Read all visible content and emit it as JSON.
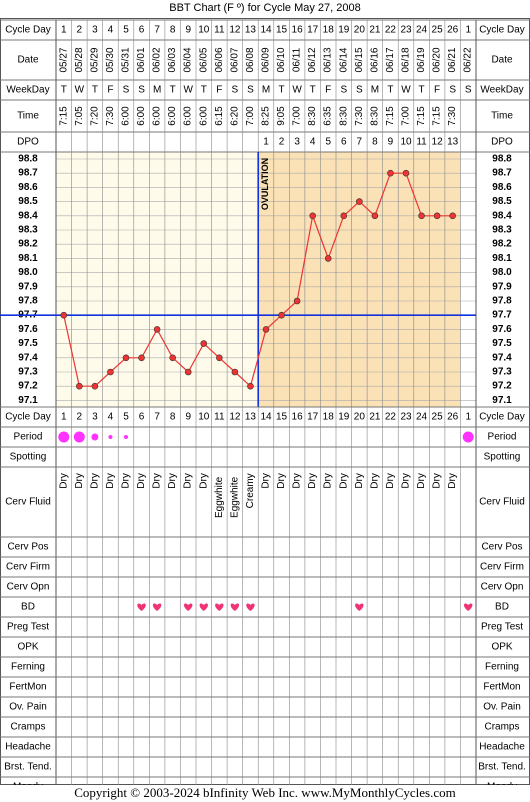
{
  "title": "BBT Chart (F º) for Cycle May 27, 2008",
  "copyright": "Copyright © 2003-2024 bInfinity Web Inc.    www.MyMonthlyCycles.com",
  "row_labels": {
    "cycle_day": "Cycle Day",
    "date": "Date",
    "weekday": "WeekDay",
    "time": "Time",
    "dpo": "DPO",
    "period": "Period",
    "spotting": "Spotting",
    "cerv_fluid": "Cerv Fluid",
    "cerv_pos": "Cerv Pos",
    "cerv_firm": "Cerv Firm",
    "cerv_opn": "Cerv Opn",
    "bd": "BD",
    "preg_test": "Preg Test",
    "opk": "OPK",
    "ferning": "Ferning",
    "fertmon": "FertMon",
    "ov_pain": "Ov. Pain",
    "cramps": "Cramps",
    "headache": "Headache",
    "brst_tend": "Brst. Tend.",
    "moody": "Moody"
  },
  "colors": {
    "pre_ovulation_fill": "#fffbea",
    "post_ovulation_fill": "#fae1b6",
    "temp_line": "#ee3333",
    "coverline": "#1133dd",
    "ovulation_line": "#1133dd",
    "period_dot": "#ff33ff",
    "bd_heart": "#ee3377",
    "grid": "#777777"
  },
  "chart_data": {
    "type": "line",
    "cycle_days": [
      "1",
      "2",
      "3",
      "4",
      "5",
      "6",
      "7",
      "8",
      "9",
      "10",
      "11",
      "12",
      "13",
      "14",
      "15",
      "16",
      "17",
      "18",
      "19",
      "20",
      "21",
      "22",
      "23",
      "24",
      "25",
      "26",
      "1"
    ],
    "dates": [
      "05/27",
      "05/28",
      "05/29",
      "05/30",
      "05/31",
      "06/01",
      "06/02",
      "06/03",
      "06/04",
      "06/05",
      "06/06",
      "06/07",
      "06/08",
      "06/09",
      "06/10",
      "06/11",
      "06/12",
      "06/13",
      "06/14",
      "06/15",
      "06/16",
      "06/17",
      "06/18",
      "06/19",
      "06/20",
      "06/21",
      "06/22"
    ],
    "weekdays": [
      "T",
      "W",
      "T",
      "F",
      "S",
      "S",
      "M",
      "T",
      "W",
      "T",
      "F",
      "S",
      "S",
      "M",
      "T",
      "W",
      "T",
      "F",
      "S",
      "S",
      "M",
      "T",
      "W",
      "T",
      "F",
      "S",
      "S"
    ],
    "times": [
      "7:15",
      "7:05",
      "7:20",
      "7:30",
      "6:00",
      "6:00",
      "6:00",
      "6:00",
      "6:00",
      "6:00",
      "6:15",
      "6:20",
      "7:00",
      "8:25",
      "9:05",
      "7:00",
      "8:30",
      "6:35",
      "8:30",
      "7:30",
      "8:30",
      "7:15",
      "7:00",
      "7:15",
      "7:15",
      "7:30",
      ""
    ],
    "dpo": [
      "",
      "",
      "",
      "",
      "",
      "",
      "",
      "",
      "",
      "",
      "",
      "",
      "",
      "1",
      "2",
      "3",
      "4",
      "5",
      "6",
      "7",
      "8",
      "9",
      "10",
      "11",
      "12",
      "13",
      ""
    ],
    "temperatures": [
      97.7,
      97.2,
      97.2,
      97.3,
      97.4,
      97.4,
      97.6,
      97.4,
      97.3,
      97.5,
      97.4,
      97.3,
      97.2,
      97.6,
      97.7,
      97.8,
      98.4,
      98.1,
      98.4,
      98.5,
      98.4,
      98.7,
      98.7,
      98.4,
      98.4,
      98.4,
      null
    ],
    "y_ticks": [
      "98.8",
      "98.7",
      "98.6",
      "98.5",
      "98.4",
      "98.3",
      "98.2",
      "98.1",
      "98.0",
      "97.9",
      "97.8",
      "97.7",
      "97.6",
      "97.5",
      "97.4",
      "97.3",
      "97.2",
      "97.1"
    ],
    "ylim": [
      97.1,
      98.8
    ],
    "coverline": 97.7,
    "ovulation_after_day_index": 12,
    "ovulation_label": "OVULATION",
    "period_levels": [
      3,
      3,
      2,
      1,
      1,
      0,
      0,
      0,
      0,
      0,
      0,
      0,
      0,
      0,
      0,
      0,
      0,
      0,
      0,
      0,
      0,
      0,
      0,
      0,
      0,
      0,
      3
    ],
    "cerv_fluid": [
      "Dry",
      "Dry",
      "Dry",
      "Dry",
      "Dry",
      "Dry",
      "Dry",
      "Dry",
      "Dry",
      "Dry",
      "Eggwhite",
      "Eggwhite",
      "Creamy",
      "Dry",
      "Dry",
      "Dry",
      "Dry",
      "Dry",
      "Dry",
      "Dry",
      "Dry",
      "Dry",
      "Dry",
      "Dry",
      "Dry",
      "Dry",
      ""
    ],
    "bd": [
      0,
      0,
      0,
      0,
      0,
      1,
      1,
      0,
      1,
      1,
      1,
      1,
      1,
      0,
      0,
      0,
      0,
      0,
      0,
      1,
      0,
      0,
      0,
      0,
      0,
      0,
      1
    ]
  }
}
